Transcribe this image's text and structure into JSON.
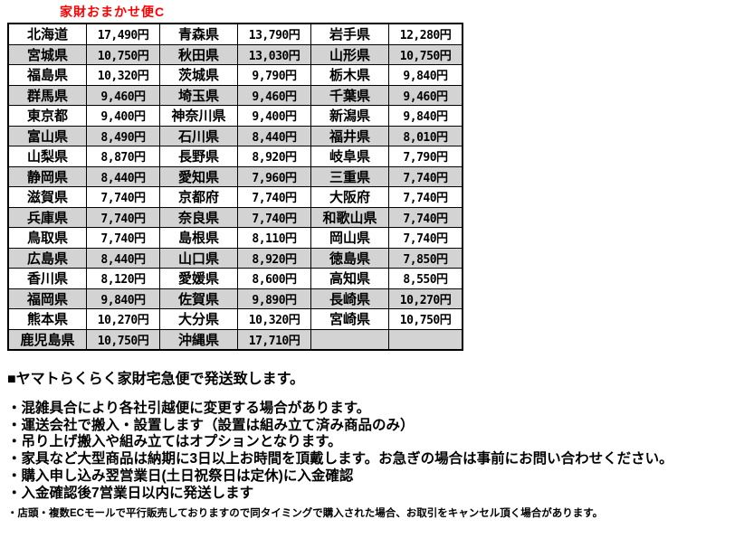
{
  "title": {
    "label": "家財おまかせ便C",
    "color": "#ff0000"
  },
  "table": {
    "alt_row_color": "#d3d3d3",
    "border_color": "#000000",
    "rows": [
      [
        {
          "pref": "北海道",
          "price": "17,490円"
        },
        {
          "pref": "青森県",
          "price": "13,790円"
        },
        {
          "pref": "岩手県",
          "price": "12,280円"
        }
      ],
      [
        {
          "pref": "宮城県",
          "price": "10,750円"
        },
        {
          "pref": "秋田県",
          "price": "13,030円"
        },
        {
          "pref": "山形県",
          "price": "10,750円"
        }
      ],
      [
        {
          "pref": "福島県",
          "price": "10,320円"
        },
        {
          "pref": "茨城県",
          "price": "9,790円"
        },
        {
          "pref": "栃木県",
          "price": "9,840円"
        }
      ],
      [
        {
          "pref": "群馬県",
          "price": "9,460円"
        },
        {
          "pref": "埼玉県",
          "price": "9,460円"
        },
        {
          "pref": "千葉県",
          "price": "9,460円"
        }
      ],
      [
        {
          "pref": "東京都",
          "price": "9,400円"
        },
        {
          "pref": "神奈川県",
          "price": "9,400円"
        },
        {
          "pref": "新潟県",
          "price": "9,840円"
        }
      ],
      [
        {
          "pref": "富山県",
          "price": "8,490円"
        },
        {
          "pref": "石川県",
          "price": "8,440円"
        },
        {
          "pref": "福井県",
          "price": "8,010円"
        }
      ],
      [
        {
          "pref": "山梨県",
          "price": "8,870円"
        },
        {
          "pref": "長野県",
          "price": "8,920円"
        },
        {
          "pref": "岐阜県",
          "price": "7,790円"
        }
      ],
      [
        {
          "pref": "静岡県",
          "price": "8,440円"
        },
        {
          "pref": "愛知県",
          "price": "7,960円"
        },
        {
          "pref": "三重県",
          "price": "7,740円"
        }
      ],
      [
        {
          "pref": "滋賀県",
          "price": "7,740円"
        },
        {
          "pref": "京都府",
          "price": "7,740円"
        },
        {
          "pref": "大阪府",
          "price": "7,740円"
        }
      ],
      [
        {
          "pref": "兵庫県",
          "price": "7,740円"
        },
        {
          "pref": "奈良県",
          "price": "7,740円"
        },
        {
          "pref": "和歌山県",
          "price": "7,740円"
        }
      ],
      [
        {
          "pref": "鳥取県",
          "price": "7,740円"
        },
        {
          "pref": "島根県",
          "price": "8,110円"
        },
        {
          "pref": "岡山県",
          "price": "7,740円"
        }
      ],
      [
        {
          "pref": "広島県",
          "price": "8,440円"
        },
        {
          "pref": "山口県",
          "price": "8,920円"
        },
        {
          "pref": "徳島県",
          "price": "7,850円"
        }
      ],
      [
        {
          "pref": "香川県",
          "price": "8,120円"
        },
        {
          "pref": "愛媛県",
          "price": "8,600円"
        },
        {
          "pref": "高知県",
          "price": "8,550円"
        }
      ],
      [
        {
          "pref": "福岡県",
          "price": "9,840円"
        },
        {
          "pref": "佐賀県",
          "price": "9,890円"
        },
        {
          "pref": "長崎県",
          "price": "10,270円"
        }
      ],
      [
        {
          "pref": "熊本県",
          "price": "10,270円"
        },
        {
          "pref": "大分県",
          "price": "10,320円"
        },
        {
          "pref": "宮崎県",
          "price": "10,750円"
        }
      ],
      [
        {
          "pref": "鹿児島県",
          "price": "10,750円"
        },
        {
          "pref": "沖縄県",
          "price": "17,710円"
        },
        {
          "pref": "",
          "price": ""
        }
      ]
    ]
  },
  "notes": {
    "heading": "■ヤマトらくらく家財宅急便で発送致します。",
    "bullets": [
      "・混雑具合により各社引越便に変更する場合があります。",
      "・運送会社で搬入・設置します（設置は組み立て済み商品のみ）",
      "・吊り上げ搬入や組み立てはオプションとなります。",
      "・家具など大型商品は納期に3日以上お時間を頂戴します。お急ぎの場合は事前にお問い合わせください。",
      "・購入申し込み翌営業日(土日祝祭日は定休)に入金確認",
      "・入金確認後7営業日以内に発送します"
    ],
    "small_note": "・店頭・複数ECモールで平行販売しておりますので同タイミングで購入された場合、お取引をキャンセル頂く場合があります。"
  }
}
